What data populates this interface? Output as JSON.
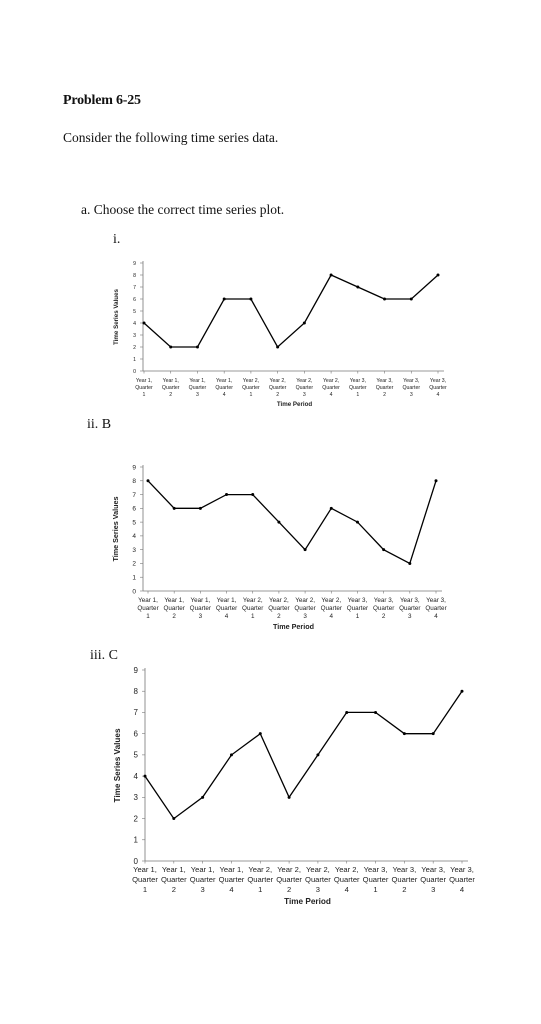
{
  "document": {
    "title": "Problem 6-25",
    "intro": "Consider the following time series data.",
    "question_a": "a.  Choose the correct time series plot.",
    "option_labels": [
      "i.",
      "ii. B",
      "iii. C"
    ]
  },
  "chart_data": [
    {
      "type": "line",
      "categories": [
        [
          "Year 1,",
          "Quarter",
          "1"
        ],
        [
          "Year 1,",
          "Quarter",
          "2"
        ],
        [
          "Year 1,",
          "Quarter",
          "3"
        ],
        [
          "Year 1,",
          "Quarter",
          "4"
        ],
        [
          "Year 2,",
          "Quarter",
          "1"
        ],
        [
          "Year 2,",
          "Quarter",
          "2"
        ],
        [
          "Year 2,",
          "Quarter",
          "3"
        ],
        [
          "Year 2,",
          "Quarter",
          "4"
        ],
        [
          "Year 3,",
          "Quarter",
          "1"
        ],
        [
          "Year 3,",
          "Quarter",
          "2"
        ],
        [
          "Year 3,",
          "Quarter",
          "3"
        ],
        [
          "Year 3,",
          "Quarter",
          "4"
        ]
      ],
      "values": [
        4,
        2,
        2,
        6,
        6,
        2,
        4,
        8,
        7,
        6,
        6,
        8
      ],
      "xlabel": "Time Period",
      "ylabel": "Time Series Values",
      "ylim": [
        0,
        9
      ],
      "yticks": [
        0,
        1,
        2,
        3,
        4,
        5,
        6,
        7,
        8,
        9
      ]
    },
    {
      "type": "line",
      "categories": [
        [
          "Year 1,",
          "Quarter",
          "1"
        ],
        [
          "Year 1,",
          "Quarter",
          "2"
        ],
        [
          "Year 1,",
          "Quarter",
          "3"
        ],
        [
          "Year 1,",
          "Quarter",
          "4"
        ],
        [
          "Year 2,",
          "Quarter",
          "1"
        ],
        [
          "Year 2,",
          "Quarter",
          "2"
        ],
        [
          "Year 2,",
          "Quarter",
          "3"
        ],
        [
          "Year 2,",
          "Quarter",
          "4"
        ],
        [
          "Year 3,",
          "Quarter",
          "1"
        ],
        [
          "Year 3,",
          "Quarter",
          "2"
        ],
        [
          "Year 3,",
          "Quarter",
          "3"
        ],
        [
          "Year 3,",
          "Quarter",
          "4"
        ]
      ],
      "values": [
        8,
        6,
        6,
        7,
        7,
        5,
        3,
        6,
        5,
        3,
        2,
        8
      ],
      "xlabel": "Time Period",
      "ylabel": "Time Series Values",
      "ylim": [
        0,
        9
      ],
      "yticks": [
        0,
        1,
        2,
        3,
        4,
        5,
        6,
        7,
        8,
        9
      ]
    },
    {
      "type": "line",
      "categories": [
        [
          "Year 1,",
          "Quarter",
          "1"
        ],
        [
          "Year 1,",
          "Quarter",
          "2"
        ],
        [
          "Year 1,",
          "Quarter",
          "3"
        ],
        [
          "Year 1,",
          "Quarter",
          "4"
        ],
        [
          "Year 2,",
          "Quarter",
          "1"
        ],
        [
          "Year 2,",
          "Quarter",
          "2"
        ],
        [
          "Year 2,",
          "Quarter",
          "3"
        ],
        [
          "Year 2,",
          "Quarter",
          "4"
        ],
        [
          "Year 3,",
          "Quarter",
          "1"
        ],
        [
          "Year 3,",
          "Quarter",
          "2"
        ],
        [
          "Year 3,",
          "Quarter",
          "3"
        ],
        [
          "Year 3,",
          "Quarter",
          "4"
        ]
      ],
      "values": [
        4,
        2,
        3,
        5,
        6,
        3,
        5,
        7,
        7,
        6,
        6,
        8
      ],
      "xlabel": "Time Period",
      "ylabel": "Time Series Values",
      "ylim": [
        0,
        9
      ],
      "yticks": [
        0,
        1,
        2,
        3,
        4,
        5,
        6,
        7,
        8,
        9
      ]
    }
  ]
}
